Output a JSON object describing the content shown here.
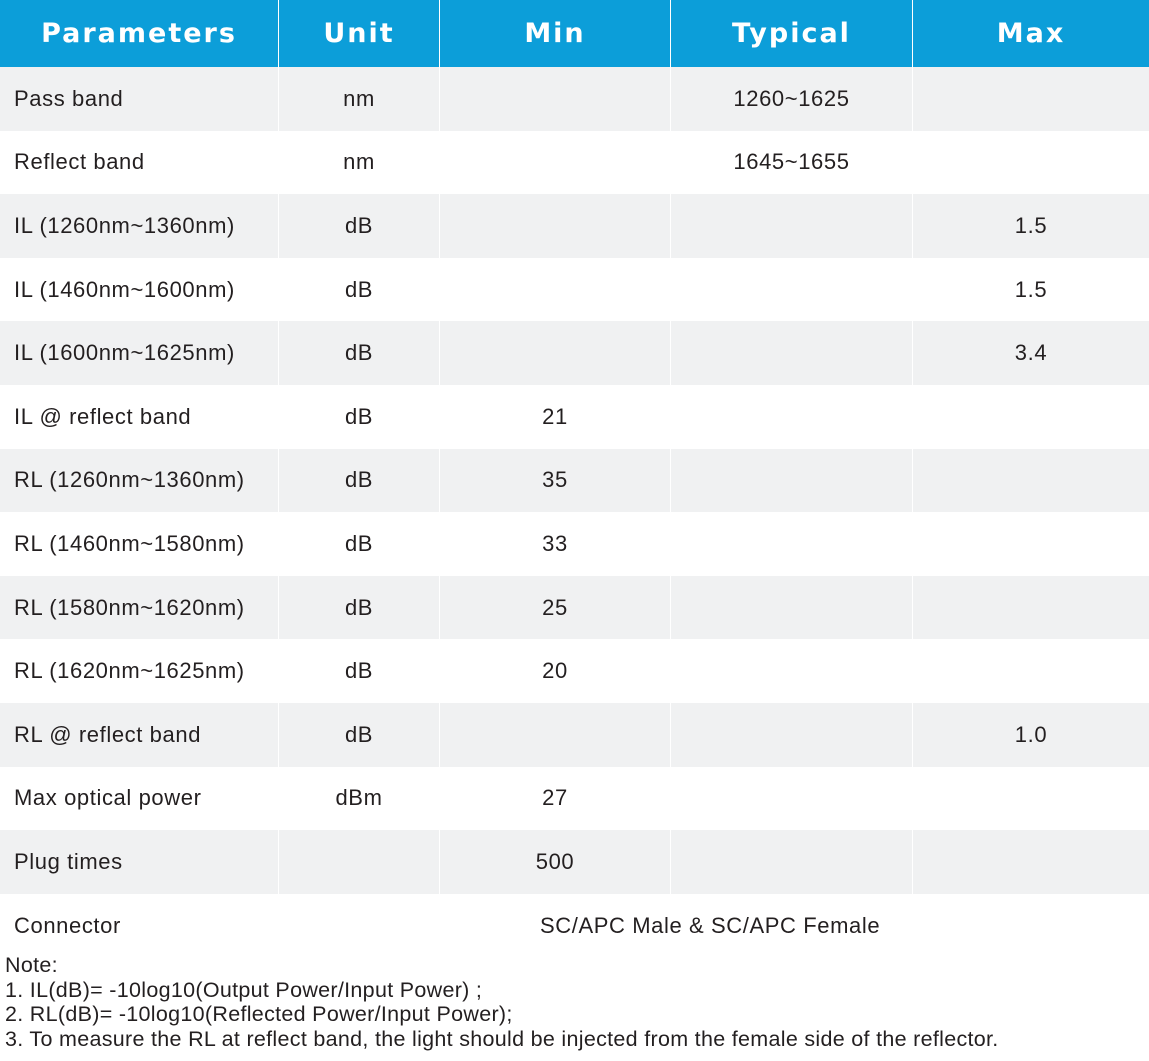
{
  "table": {
    "headers": [
      "Parameters",
      "Unit",
      "Min",
      "Typical",
      "Max"
    ],
    "rows": [
      {
        "parameter": "Pass band",
        "unit": "nm",
        "min": "",
        "typical": "1260~1625",
        "max": ""
      },
      {
        "parameter": "Reflect band",
        "unit": "nm",
        "min": "",
        "typical": "1645~1655",
        "max": ""
      },
      {
        "parameter": "IL (1260nm~1360nm)",
        "unit": "dB",
        "min": "",
        "typical": "",
        "max": "1.5"
      },
      {
        "parameter": "IL (1460nm~1600nm)",
        "unit": "dB",
        "min": "",
        "typical": "",
        "max": "1.5"
      },
      {
        "parameter": "IL (1600nm~1625nm)",
        "unit": "dB",
        "min": "",
        "typical": "",
        "max": "3.4"
      },
      {
        "parameter": "IL @ reflect band",
        "unit": "dB",
        "min": "21",
        "typical": "",
        "max": ""
      },
      {
        "parameter": "RL (1260nm~1360nm)",
        "unit": "dB",
        "min": "35",
        "typical": "",
        "max": ""
      },
      {
        "parameter": "RL (1460nm~1580nm)",
        "unit": "dB",
        "min": "33",
        "typical": "",
        "max": ""
      },
      {
        "parameter": "RL (1580nm~1620nm)",
        "unit": "dB",
        "min": "25",
        "typical": "",
        "max": ""
      },
      {
        "parameter": "RL (1620nm~1625nm)",
        "unit": "dB",
        "min": "20",
        "typical": "",
        "max": ""
      },
      {
        "parameter": "RL @ reflect band",
        "unit": "dB",
        "min": "",
        "typical": "",
        "max": "1.0"
      },
      {
        "parameter": "Max optical power",
        "unit": "dBm",
        "min": "27",
        "typical": "",
        "max": ""
      },
      {
        "parameter": "Plug times",
        "unit": "",
        "min": "500",
        "typical": "",
        "max": ""
      }
    ],
    "connector": {
      "parameter": "Connector",
      "value": "SC/APC Male & SC/APC Female"
    }
  },
  "notes": {
    "title": "Note:",
    "items": [
      "1. IL(dB)= -10log10(Output Power/Input Power) ;",
      "2. RL(dB)= -10log10(Reflected Power/Input Power);",
      "3. To measure the RL at reflect band, the light should be injected from the female side of the reflector."
    ]
  },
  "colors": {
    "header_bg": "#0c9ed9",
    "row_alt_bg": "#f0f1f2",
    "text": "#231f20"
  }
}
